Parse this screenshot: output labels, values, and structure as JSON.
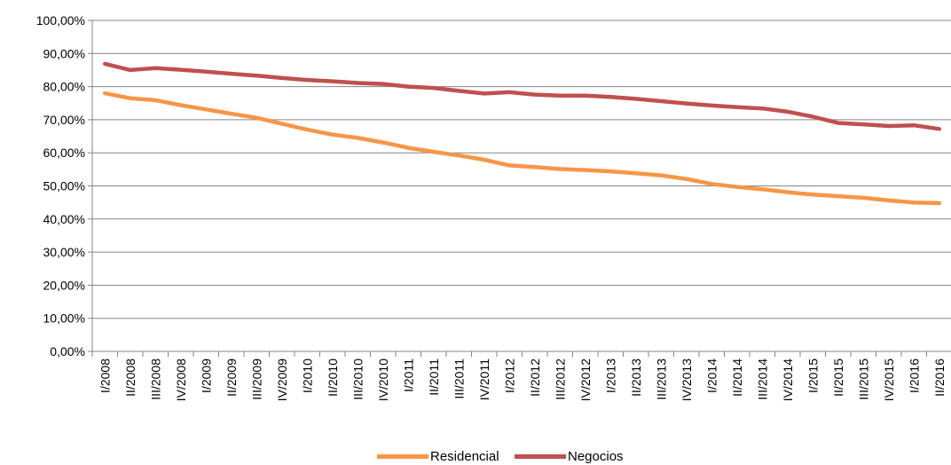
{
  "chart_data": {
    "type": "line",
    "x": [
      "I/2008",
      "II/2008",
      "III/2008",
      "IV/2008",
      "I/2009",
      "II/2009",
      "III/2009",
      "IV/2009",
      "I/2010",
      "II/2010",
      "III/2010",
      "IV/2010",
      "I/2011",
      "II/2011",
      "III/2011",
      "IV/2011",
      "I/2012",
      "II/2012",
      "III/2012",
      "IV/2012",
      "I/2013",
      "II/2013",
      "III/2013",
      "IV/2013",
      "I/2014",
      "II/2014",
      "III/2014",
      "IV/2014",
      "I/2015",
      "II/2015",
      "III/2015",
      "IV/2015",
      "I/2016",
      "II/2016"
    ],
    "series": [
      {
        "name": "Residencial",
        "color": "#F79646",
        "values": [
          78.0,
          76.5,
          75.9,
          74.4,
          73.1,
          71.8,
          70.6,
          68.8,
          67.0,
          65.5,
          64.5,
          63.1,
          61.5,
          60.3,
          59.2,
          57.9,
          56.2,
          55.7,
          55.1,
          54.8,
          54.4,
          53.8,
          53.2,
          52.1,
          50.6,
          49.7,
          49.0,
          48.1,
          47.4,
          46.9,
          46.4,
          45.6,
          45.0,
          44.8
        ]
      },
      {
        "name": "Negocios",
        "color": "#C0504D",
        "values": [
          86.9,
          85.0,
          85.6,
          85.1,
          84.5,
          83.9,
          83.3,
          82.6,
          82.0,
          81.6,
          81.1,
          80.8,
          80.0,
          79.6,
          78.7,
          77.9,
          78.3,
          77.6,
          77.3,
          77.3,
          76.9,
          76.3,
          75.6,
          74.9,
          74.3,
          73.8,
          73.4,
          72.4,
          70.9,
          69.0,
          68.6,
          68.1,
          68.3,
          67.2
        ]
      }
    ],
    "y_ticks": [
      "0,00%",
      "10,00%",
      "20,00%",
      "30,00%",
      "40,00%",
      "50,00%",
      "60,00%",
      "70,00%",
      "80,00%",
      "90,00%",
      "100,00%"
    ],
    "ylim": [
      0,
      100
    ],
    "grid": true,
    "legend_position": "bottom"
  }
}
